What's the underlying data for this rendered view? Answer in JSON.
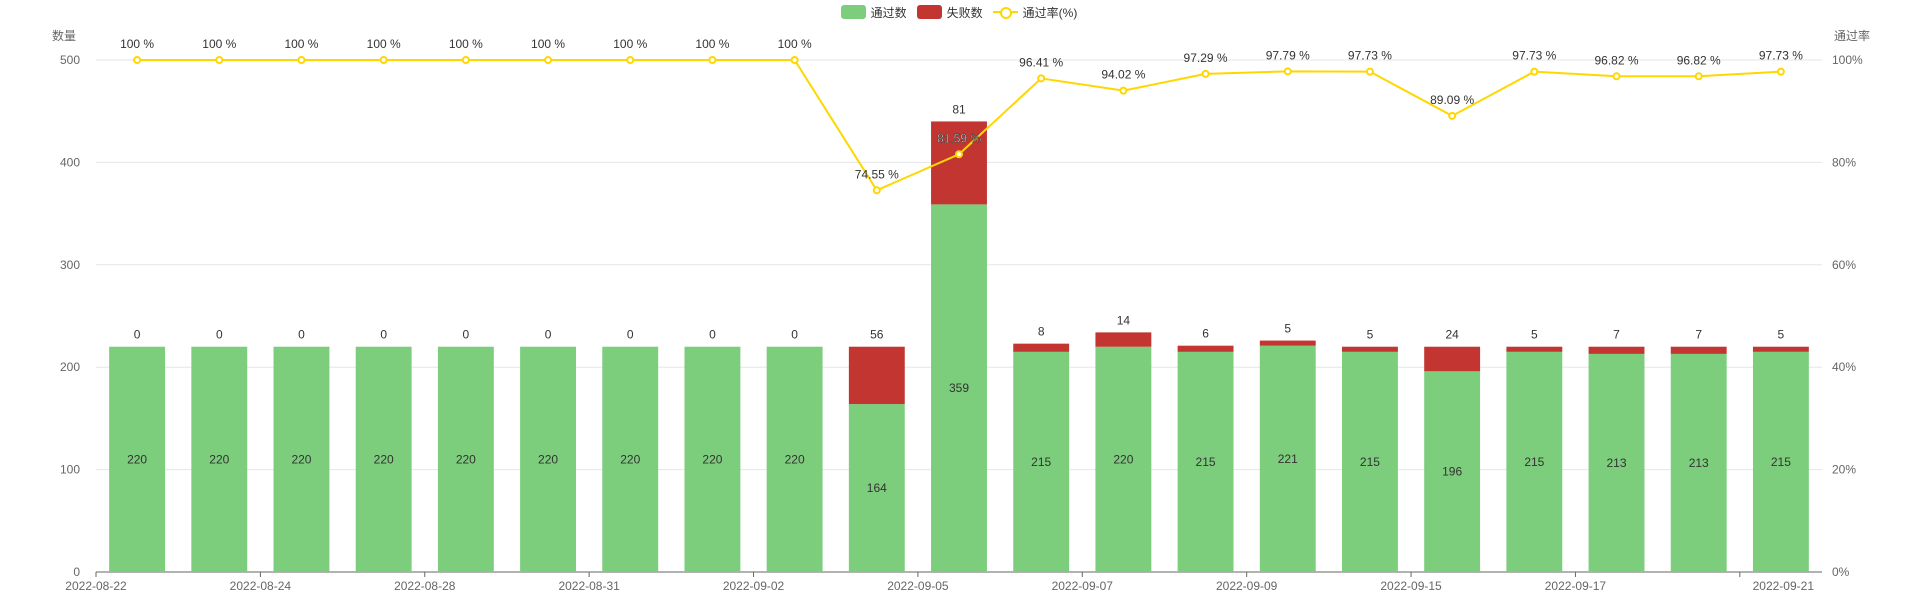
{
  "legend": {
    "pass": "通过数",
    "fail": "失败数",
    "rate": "通过率(%)"
  },
  "colors": {
    "pass": "#7ccd7c",
    "fail": "#c23531",
    "rate": "#FFD700",
    "axis": "#666666",
    "grid": "#e6e6e6"
  },
  "chart_data": {
    "type": "bar",
    "ylabel_left": "数量",
    "ylabel_right": "通过率",
    "ylim_left": [
      0,
      500
    ],
    "ylim_right": [
      0,
      100
    ],
    "left_ticks": [
      0,
      100,
      200,
      300,
      400,
      500
    ],
    "right_ticks": [
      "0%",
      "20%",
      "40%",
      "60%",
      "80%",
      "100%"
    ],
    "x_tick_labels": [
      "2022-08-22",
      "2022-08-24",
      "2022-08-28",
      "2022-08-31",
      "2022-09-02",
      "2022-09-05",
      "2022-09-07",
      "2022-09-09",
      "2022-09-15",
      "2022-09-17",
      "2022-09-21"
    ],
    "x_tick_label_every": 2,
    "grid": true,
    "series": [
      {
        "name": "通过数",
        "type": "bar",
        "stack": "total",
        "values": [
          220,
          220,
          220,
          220,
          220,
          220,
          220,
          220,
          220,
          164,
          359,
          215,
          220,
          215,
          221,
          215,
          196,
          215,
          213,
          213,
          215
        ]
      },
      {
        "name": "失败数",
        "type": "bar",
        "stack": "total",
        "values": [
          0,
          0,
          0,
          0,
          0,
          0,
          0,
          0,
          0,
          56,
          81,
          8,
          14,
          6,
          5,
          5,
          24,
          5,
          7,
          7,
          5
        ]
      },
      {
        "name": "通过率(%)",
        "type": "line",
        "axis": "right",
        "values": [
          100,
          100,
          100,
          100,
          100,
          100,
          100,
          100,
          100,
          74.55,
          81.59,
          96.41,
          94.02,
          97.29,
          97.79,
          97.73,
          89.09,
          97.73,
          96.82,
          96.82,
          97.73
        ]
      }
    ],
    "rate_labels": [
      "100 %",
      "100 %",
      "100 %",
      "100 %",
      "100 %",
      "100 %",
      "100 %",
      "100 %",
      "100 %",
      "74.55 %",
      "81.59 %",
      "96.41 %",
      "94.02 %",
      "97.29 %",
      "97.79 %",
      "97.73 %",
      "89.09 %",
      "97.73 %",
      "96.82 %",
      "96.82 %",
      "97.73 %"
    ]
  }
}
